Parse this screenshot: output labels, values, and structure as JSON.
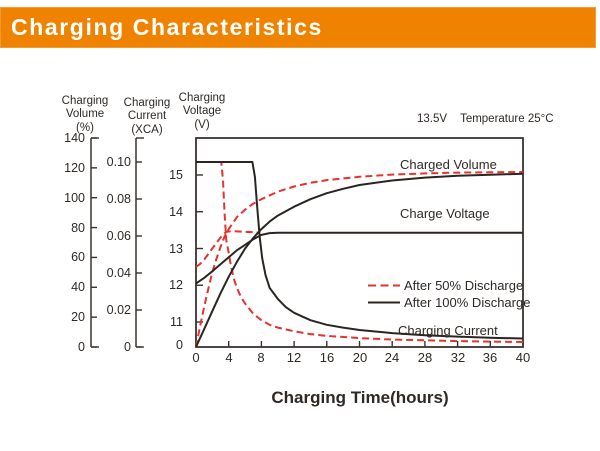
{
  "header": {
    "title": "Charging Characteristics",
    "bg_color": "#EF8300",
    "text_color": "#FFFFFF"
  },
  "annotation": {
    "voltage": "13.5V",
    "temperature": "Temperature 25°C"
  },
  "axes": {
    "volume": {
      "title_lines": [
        "Charging",
        "Volume"
      ],
      "unit": "(%)",
      "ticks": [
        "0",
        "20",
        "40",
        "60",
        "80",
        "100",
        "120",
        "140"
      ]
    },
    "current": {
      "title_lines": [
        "Charging",
        "Current"
      ],
      "unit": "(XCA)",
      "ticks": [
        "0",
        "0.02",
        "0.04",
        "0.06",
        "0.08",
        "0.10"
      ]
    },
    "voltage": {
      "title_lines": [
        "Charging",
        "Voltage"
      ],
      "unit": "(V)",
      "ticks": [
        "0",
        "11",
        "12",
        "13",
        "14",
        "15"
      ]
    },
    "x": {
      "label": "Charging Time(hours)",
      "ticks": [
        "0",
        "4",
        "8",
        "12",
        "16",
        "20",
        "24",
        "28",
        "32",
        "36",
        "40"
      ]
    }
  },
  "curve_labels": {
    "charged_volume": "Charged Volume",
    "charge_voltage": "Charge Voltage",
    "charging_current": "Charging Current"
  },
  "legend": [
    {
      "label": "After 50% Discharge",
      "style": "dashed",
      "color": "#E6322D"
    },
    {
      "label": "After 100% Discharge",
      "style": "solid",
      "color": "#2B2521"
    }
  ],
  "colors": {
    "accent_orange": "#EF8300",
    "curve_red": "#E6322D",
    "curve_black": "#2B2521",
    "axis": "#39332F"
  },
  "chart_data": {
    "type": "line",
    "title": "Charging Characteristics",
    "condition": "13.5V Temperature 25°C",
    "xlabel": "Charging Time(hours)",
    "xlim": [
      0,
      40
    ],
    "x_ticks": [
      0,
      4,
      8,
      12,
      16,
      20,
      24,
      28,
      32,
      36,
      40
    ],
    "y_axes": {
      "volume_pct": {
        "label": "Charging Volume (%)",
        "range": [
          0,
          140
        ],
        "ticks": [
          0,
          20,
          40,
          60,
          80,
          100,
          120,
          140
        ]
      },
      "current_xca": {
        "label": "Charging Current (XCA)",
        "range": [
          0,
          0.1
        ],
        "ticks": [
          0,
          0.02,
          0.04,
          0.06,
          0.08,
          0.1
        ]
      },
      "voltage_v": {
        "label": "Charging Voltage (V)",
        "range": [
          11,
          15
        ],
        "ticks": [
          0,
          11,
          12,
          13,
          14,
          15
        ]
      }
    },
    "legend_position": "center-right",
    "grid": false,
    "series": [
      {
        "id": "charged-volume-after-50",
        "name": "Charged Volume",
        "discharge": "After 50% Discharge",
        "axis": "volume_pct",
        "style": "dashed",
        "color": "#E6322D",
        "points": [
          [
            0,
            0
          ],
          [
            0.5,
            14
          ],
          [
            1,
            27
          ],
          [
            1.5,
            39
          ],
          [
            2,
            50
          ],
          [
            2.5,
            59
          ],
          [
            3,
            67
          ],
          [
            3.5,
            74
          ],
          [
            4,
            79
          ],
          [
            5,
            87
          ],
          [
            6,
            92
          ],
          [
            7,
            96
          ],
          [
            8,
            99
          ],
          [
            10,
            104
          ],
          [
            12,
            107.5
          ],
          [
            14,
            110
          ],
          [
            16,
            111.8
          ],
          [
            20,
            114
          ],
          [
            24,
            115.5
          ],
          [
            28,
            116.3
          ],
          [
            32,
            116.8
          ],
          [
            36,
            117
          ],
          [
            40,
            117.2
          ]
        ]
      },
      {
        "id": "charge-voltage-after-50",
        "name": "Charge Voltage",
        "discharge": "After 50% Discharge",
        "axis": "voltage_v",
        "style": "dashed",
        "color": "#E6322D",
        "points": [
          [
            0,
            12.5
          ],
          [
            0.5,
            12.58
          ],
          [
            1,
            12.7
          ],
          [
            1.5,
            12.85
          ],
          [
            2,
            13.0
          ],
          [
            2.5,
            13.15
          ],
          [
            3,
            13.3
          ],
          [
            3.4,
            13.4
          ],
          [
            3.8,
            13.46
          ],
          [
            4.5,
            13.47
          ],
          [
            5.5,
            13.46
          ],
          [
            6.5,
            13.45
          ],
          [
            7.5,
            13.44
          ]
        ]
      },
      {
        "id": "charging-current-after-50",
        "name": "Charging Current",
        "discharge": "After 50% Discharge",
        "axis": "current_xca",
        "style": "dashed",
        "color": "#E6322D",
        "points": [
          [
            0,
            0.1
          ],
          [
            3.1,
            0.1
          ],
          [
            3.3,
            0.09
          ],
          [
            3.5,
            0.072
          ],
          [
            3.7,
            0.058
          ],
          [
            4,
            0.051
          ],
          [
            4.3,
            0.043
          ],
          [
            4.7,
            0.036
          ],
          [
            5,
            0.032
          ],
          [
            5.5,
            0.027
          ],
          [
            6,
            0.0235
          ],
          [
            7,
            0.018
          ],
          [
            8,
            0.0145
          ],
          [
            9,
            0.012
          ],
          [
            10,
            0.0105
          ],
          [
            12,
            0.0085
          ],
          [
            14,
            0.007
          ],
          [
            16,
            0.006
          ],
          [
            20,
            0.0048
          ],
          [
            24,
            0.004
          ],
          [
            28,
            0.0036
          ],
          [
            32,
            0.0032
          ],
          [
            36,
            0.0029
          ],
          [
            40,
            0.0027
          ]
        ]
      },
      {
        "id": "charged-volume-after-100",
        "name": "Charged Volume",
        "discharge": "After 100% Discharge",
        "axis": "volume_pct",
        "style": "solid",
        "color": "#2B2521",
        "points": [
          [
            0,
            0
          ],
          [
            1,
            12
          ],
          [
            2,
            24
          ],
          [
            3,
            36
          ],
          [
            4,
            47
          ],
          [
            5,
            57
          ],
          [
            6,
            66
          ],
          [
            7,
            73
          ],
          [
            8,
            79
          ],
          [
            9,
            84
          ],
          [
            10,
            88
          ],
          [
            12,
            94
          ],
          [
            14,
            99
          ],
          [
            16,
            103
          ],
          [
            18,
            106
          ],
          [
            20,
            108.5
          ],
          [
            24,
            111.5
          ],
          [
            28,
            113.5
          ],
          [
            32,
            114.7
          ],
          [
            36,
            115.4
          ],
          [
            40,
            116
          ]
        ]
      },
      {
        "id": "charge-voltage-after-100",
        "name": "Charge Voltage",
        "discharge": "After 100% Discharge",
        "axis": "voltage_v",
        "style": "solid",
        "color": "#2B2521",
        "points": [
          [
            0,
            12.05
          ],
          [
            1,
            12.2
          ],
          [
            2,
            12.38
          ],
          [
            3,
            12.57
          ],
          [
            4,
            12.76
          ],
          [
            5,
            12.95
          ],
          [
            6,
            13.1
          ],
          [
            7,
            13.25
          ],
          [
            8,
            13.37
          ],
          [
            9,
            13.42
          ],
          [
            10,
            13.43
          ],
          [
            12,
            13.43
          ],
          [
            40,
            13.43
          ]
        ]
      },
      {
        "id": "charging-current-after-100",
        "name": "Charging Current",
        "discharge": "After 100% Discharge",
        "axis": "current_xca",
        "style": "solid",
        "color": "#2B2521",
        "points": [
          [
            0,
            0.1
          ],
          [
            6.9,
            0.1
          ],
          [
            7.2,
            0.092
          ],
          [
            7.5,
            0.075
          ],
          [
            7.8,
            0.059
          ],
          [
            8.1,
            0.048
          ],
          [
            8.5,
            0.039
          ],
          [
            9,
            0.032
          ],
          [
            10,
            0.026
          ],
          [
            11,
            0.0215
          ],
          [
            12,
            0.0185
          ],
          [
            14,
            0.0145
          ],
          [
            16,
            0.012
          ],
          [
            18,
            0.0105
          ],
          [
            20,
            0.0092
          ],
          [
            24,
            0.0075
          ],
          [
            28,
            0.0064
          ],
          [
            32,
            0.0056
          ],
          [
            36,
            0.005
          ],
          [
            40,
            0.0046
          ]
        ]
      }
    ]
  }
}
